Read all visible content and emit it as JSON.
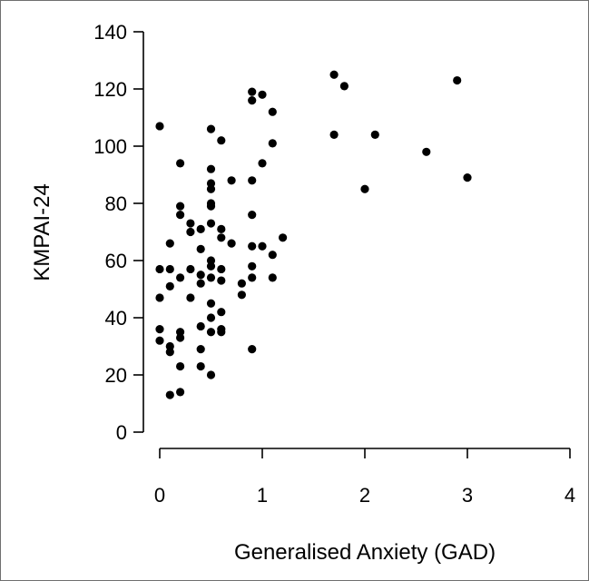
{
  "chart_data": {
    "type": "scatter",
    "title": "",
    "xlabel": "Generalised Anxiety (GAD)",
    "ylabel": "KMPAI-24",
    "xlim": [
      0,
      4
    ],
    "ylim": [
      0,
      140
    ],
    "x_ticks": [
      "0",
      "1",
      "2",
      "3",
      "4"
    ],
    "y_ticks": [
      "0",
      "20",
      "40",
      "60",
      "80",
      "100",
      "120",
      "140"
    ],
    "grid": false,
    "legend": "none",
    "point_color": "#000000",
    "points": [
      {
        "x": 0.0,
        "y": 107
      },
      {
        "x": 0.0,
        "y": 57
      },
      {
        "x": 0.0,
        "y": 47
      },
      {
        "x": 0.0,
        "y": 36
      },
      {
        "x": 0.0,
        "y": 32
      },
      {
        "x": 0.1,
        "y": 66
      },
      {
        "x": 0.1,
        "y": 57
      },
      {
        "x": 0.1,
        "y": 51
      },
      {
        "x": 0.1,
        "y": 30
      },
      {
        "x": 0.1,
        "y": 28
      },
      {
        "x": 0.1,
        "y": 13
      },
      {
        "x": 0.2,
        "y": 94
      },
      {
        "x": 0.2,
        "y": 79
      },
      {
        "x": 0.2,
        "y": 76
      },
      {
        "x": 0.2,
        "y": 54
      },
      {
        "x": 0.2,
        "y": 35
      },
      {
        "x": 0.2,
        "y": 33
      },
      {
        "x": 0.2,
        "y": 23
      },
      {
        "x": 0.2,
        "y": 14
      },
      {
        "x": 0.3,
        "y": 73
      },
      {
        "x": 0.3,
        "y": 70
      },
      {
        "x": 0.3,
        "y": 57
      },
      {
        "x": 0.3,
        "y": 47
      },
      {
        "x": 0.4,
        "y": 71
      },
      {
        "x": 0.4,
        "y": 64
      },
      {
        "x": 0.4,
        "y": 55
      },
      {
        "x": 0.4,
        "y": 52
      },
      {
        "x": 0.4,
        "y": 37
      },
      {
        "x": 0.4,
        "y": 29
      },
      {
        "x": 0.4,
        "y": 23
      },
      {
        "x": 0.5,
        "y": 106
      },
      {
        "x": 0.5,
        "y": 92
      },
      {
        "x": 0.5,
        "y": 87
      },
      {
        "x": 0.5,
        "y": 85
      },
      {
        "x": 0.5,
        "y": 80
      },
      {
        "x": 0.5,
        "y": 79
      },
      {
        "x": 0.5,
        "y": 73
      },
      {
        "x": 0.5,
        "y": 60
      },
      {
        "x": 0.5,
        "y": 58
      },
      {
        "x": 0.5,
        "y": 54
      },
      {
        "x": 0.5,
        "y": 45
      },
      {
        "x": 0.5,
        "y": 40
      },
      {
        "x": 0.5,
        "y": 35
      },
      {
        "x": 0.5,
        "y": 20
      },
      {
        "x": 0.6,
        "y": 102
      },
      {
        "x": 0.6,
        "y": 71
      },
      {
        "x": 0.6,
        "y": 68
      },
      {
        "x": 0.6,
        "y": 57
      },
      {
        "x": 0.6,
        "y": 53
      },
      {
        "x": 0.6,
        "y": 42
      },
      {
        "x": 0.6,
        "y": 36
      },
      {
        "x": 0.6,
        "y": 35
      },
      {
        "x": 0.7,
        "y": 88
      },
      {
        "x": 0.7,
        "y": 66
      },
      {
        "x": 0.8,
        "y": 52
      },
      {
        "x": 0.8,
        "y": 48
      },
      {
        "x": 0.9,
        "y": 119
      },
      {
        "x": 0.9,
        "y": 116
      },
      {
        "x": 0.9,
        "y": 88
      },
      {
        "x": 0.9,
        "y": 76
      },
      {
        "x": 0.9,
        "y": 65
      },
      {
        "x": 0.9,
        "y": 58
      },
      {
        "x": 0.9,
        "y": 54
      },
      {
        "x": 0.9,
        "y": 29
      },
      {
        "x": 1.0,
        "y": 118
      },
      {
        "x": 1.0,
        "y": 94
      },
      {
        "x": 1.0,
        "y": 65
      },
      {
        "x": 1.1,
        "y": 112
      },
      {
        "x": 1.1,
        "y": 101
      },
      {
        "x": 1.1,
        "y": 62
      },
      {
        "x": 1.1,
        "y": 54
      },
      {
        "x": 1.2,
        "y": 68
      },
      {
        "x": 1.7,
        "y": 125
      },
      {
        "x": 1.7,
        "y": 104
      },
      {
        "x": 1.8,
        "y": 121
      },
      {
        "x": 2.0,
        "y": 85
      },
      {
        "x": 2.1,
        "y": 104
      },
      {
        "x": 2.6,
        "y": 98
      },
      {
        "x": 2.9,
        "y": 123
      },
      {
        "x": 3.0,
        "y": 89
      }
    ]
  }
}
